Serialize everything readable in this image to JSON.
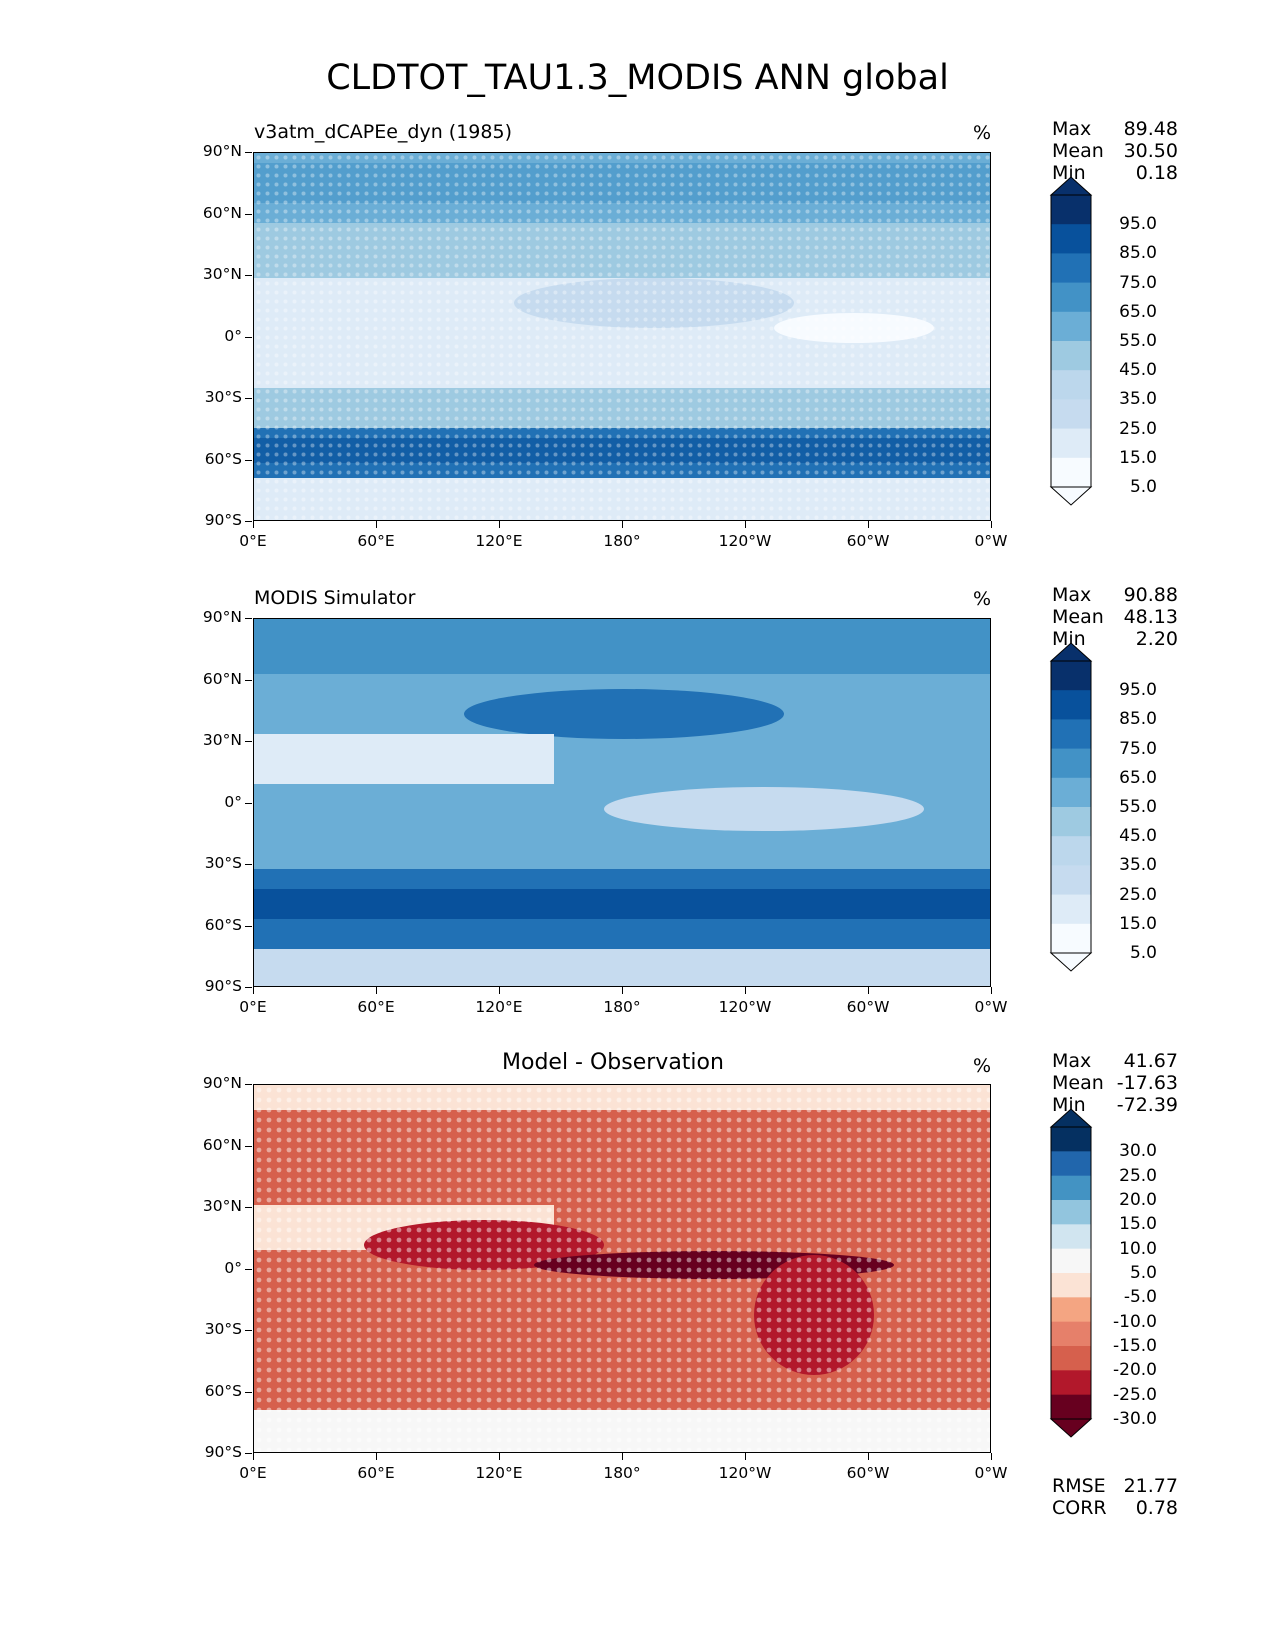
{
  "title": "CLDTOT_TAU1.3_MODIS ANN global",
  "axes": {
    "lon_ticks": [
      "0°E",
      "60°E",
      "120°E",
      "180°",
      "120°W",
      "60°W",
      "0°W"
    ],
    "lat_ticks": [
      "90°N",
      "60°N",
      "30°N",
      "0°",
      "30°S",
      "60°S",
      "90°S"
    ]
  },
  "panels": [
    {
      "name": "test",
      "title": "v3atm_dCAPEe_dyn (1985)",
      "units": "%",
      "stats": [
        {
          "label": "Max",
          "value": "89.48"
        },
        {
          "label": "Mean",
          "value": "30.50"
        },
        {
          "label": "Min",
          "value": "0.18"
        }
      ],
      "colorbar": {
        "labels": [
          "95.0",
          "85.0",
          "75.0",
          "65.0",
          "55.0",
          "45.0",
          "35.0",
          "25.0",
          "15.0",
          "5.0"
        ],
        "colors": [
          "#08306b",
          "#08519c",
          "#2171b5",
          "#4292c6",
          "#6baed6",
          "#9ecae1",
          "#bcd7ec",
          "#c6dbef",
          "#deebf7",
          "#f7fbff"
        ]
      }
    },
    {
      "name": "reference",
      "title": "MODIS Simulator",
      "units": "%",
      "stats": [
        {
          "label": "Max",
          "value": "90.88"
        },
        {
          "label": "Mean",
          "value": "48.13"
        },
        {
          "label": "Min",
          "value": "2.20"
        }
      ],
      "colorbar": {
        "labels": [
          "95.0",
          "85.0",
          "75.0",
          "65.0",
          "55.0",
          "45.0",
          "35.0",
          "25.0",
          "15.0",
          "5.0"
        ],
        "colors": [
          "#08306b",
          "#08519c",
          "#2171b5",
          "#4292c6",
          "#6baed6",
          "#9ecae1",
          "#bcd7ec",
          "#c6dbef",
          "#deebf7",
          "#f7fbff"
        ]
      }
    },
    {
      "name": "difference",
      "title": "Model - Observation",
      "units": "%",
      "stats": [
        {
          "label": "Max",
          "value": "41.67"
        },
        {
          "label": "Mean",
          "value": "-17.63"
        },
        {
          "label": "Min",
          "value": "-72.39"
        }
      ],
      "colorbar": {
        "labels": [
          "30.0",
          "25.0",
          "20.0",
          "15.0",
          "10.0",
          "5.0",
          "-5.0",
          "-10.0",
          "-15.0",
          "-20.0",
          "-25.0",
          "-30.0"
        ],
        "colors": [
          "#053061",
          "#2166ac",
          "#4393c3",
          "#92c5de",
          "#d1e5f0",
          "#f7f7f7",
          "#fbe3d5",
          "#f4a582",
          "#e6806a",
          "#d6604d",
          "#b2182b",
          "#67001f"
        ]
      },
      "metrics": [
        {
          "label": "RMSE",
          "value": "21.77"
        },
        {
          "label": "CORR",
          "value": "0.78"
        }
      ]
    }
  ]
}
